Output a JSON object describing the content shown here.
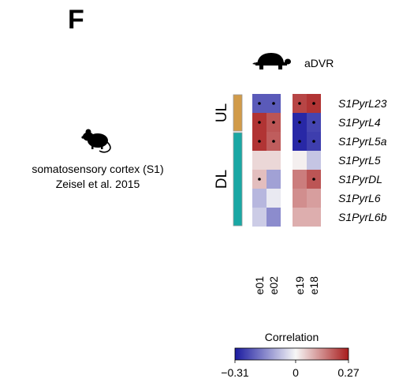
{
  "panel_label": "F",
  "left_caption": {
    "line1": "somatosensory cortex (S1)",
    "line2": "Zeisel et al. 2015"
  },
  "icons": {
    "species_left": "mouse-icon",
    "species_right": "turtle-icon"
  },
  "colors": {
    "neg": "#1a1aa0",
    "zero": "#f7f7f7",
    "pos": "#a81c1c",
    "group_UL": "#d19b4a",
    "group_DL": "#1aa7a4",
    "border": "#9a9a9a"
  },
  "chart_data": {
    "type": "heatmap",
    "title": "aDVR",
    "rows": [
      "S1PyrL23",
      "S1PyrL4",
      "S1PyrL5a",
      "S1PyrL5",
      "S1PyrDL",
      "S1PyrL6",
      "S1PyrL6b"
    ],
    "columns": [
      "e01",
      "e02",
      "e19",
      "e18"
    ],
    "values": [
      [
        -0.22,
        -0.22,
        0.22,
        0.24
      ],
      [
        0.24,
        0.2,
        -0.29,
        -0.25
      ],
      [
        0.24,
        0.19,
        -0.29,
        -0.26
      ],
      [
        0.04,
        0.04,
        0.01,
        -0.07
      ],
      [
        0.07,
        -0.12,
        0.15,
        0.2
      ],
      [
        -0.09,
        -0.02,
        0.13,
        0.11
      ],
      [
        -0.06,
        -0.15,
        0.09,
        0.09
      ]
    ],
    "significant": [
      [
        true,
        true,
        true,
        true
      ],
      [
        true,
        true,
        true,
        true
      ],
      [
        true,
        true,
        true,
        true
      ],
      [
        false,
        false,
        false,
        false
      ],
      [
        true,
        false,
        false,
        true
      ],
      [
        false,
        false,
        false,
        false
      ],
      [
        false,
        false,
        false,
        false
      ]
    ],
    "groups": [
      {
        "label": "UL",
        "rows": [
          0,
          1
        ]
      },
      {
        "label": "DL",
        "rows": [
          2,
          6
        ]
      }
    ],
    "colorbar": {
      "title": "Correlation",
      "min": -0.31,
      "max": 0.27,
      "ticks": [
        "−0.31",
        "0",
        "0.27"
      ]
    }
  }
}
